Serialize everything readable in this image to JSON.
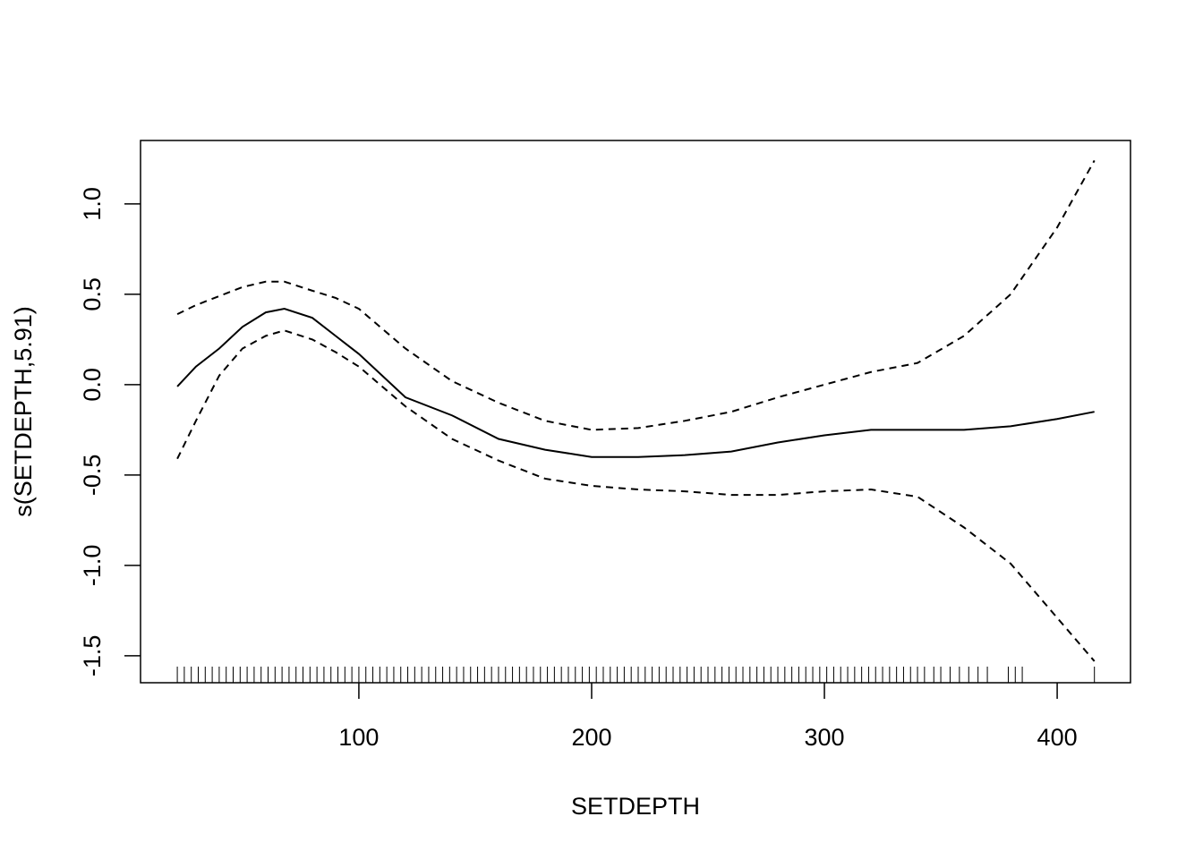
{
  "chart_data": {
    "type": "line",
    "x_label": "SETDEPTH",
    "y_label": "s(SETDEPTH,5.91)",
    "x": [
      22,
      30,
      40,
      50,
      60,
      68,
      80,
      90,
      100,
      120,
      140,
      160,
      180,
      200,
      220,
      240,
      260,
      280,
      300,
      320,
      340,
      360,
      380,
      400,
      416
    ],
    "series": [
      {
        "color": "#000000",
        "dashed": false,
        "values": [
          -0.01,
          0.1,
          0.2,
          0.32,
          0.4,
          0.42,
          0.37,
          0.27,
          0.17,
          -0.07,
          -0.17,
          -0.3,
          -0.36,
          -0.4,
          -0.4,
          -0.39,
          -0.37,
          -0.32,
          -0.28,
          -0.25,
          -0.25,
          -0.25,
          -0.23,
          -0.19,
          -0.15
        ]
      },
      {
        "color": "#000000",
        "dashed": true,
        "values": [
          0.39,
          0.44,
          0.49,
          0.54,
          0.57,
          0.57,
          0.52,
          0.48,
          0.42,
          0.2,
          0.02,
          -0.1,
          -0.2,
          -0.25,
          -0.24,
          -0.2,
          -0.15,
          -0.07,
          0.0,
          0.07,
          0.12,
          0.27,
          0.5,
          0.87,
          1.24
        ]
      },
      {
        "color": "#000000",
        "dashed": true,
        "values": [
          -0.41,
          -0.2,
          0.05,
          0.2,
          0.27,
          0.3,
          0.25,
          0.18,
          0.1,
          -0.12,
          -0.3,
          -0.42,
          -0.52,
          -0.56,
          -0.58,
          -0.59,
          -0.61,
          -0.61,
          -0.59,
          -0.58,
          -0.62,
          -0.79,
          -0.99,
          -1.29,
          -1.53
        ]
      }
    ],
    "rug": [
      22,
      25,
      28,
      31,
      34,
      37,
      40,
      43,
      46,
      49,
      52,
      55,
      58,
      61,
      64,
      67,
      70,
      73,
      76,
      79,
      82,
      85,
      88,
      91,
      94,
      97,
      100,
      103,
      106,
      109,
      112,
      115,
      118,
      121,
      124,
      127,
      130,
      133,
      136,
      139,
      142,
      145,
      148,
      151,
      154,
      157,
      160,
      163,
      166,
      169,
      172,
      175,
      178,
      181,
      184,
      187,
      190,
      193,
      196,
      199,
      202,
      205,
      208,
      211,
      214,
      217,
      220,
      223,
      226,
      229,
      232,
      235,
      238,
      241,
      244,
      247,
      250,
      253,
      256,
      259,
      262,
      265,
      268,
      271,
      274,
      277,
      280,
      283,
      286,
      289,
      292,
      295,
      298,
      301,
      304,
      307,
      310,
      313,
      316,
      319,
      322,
      325,
      328,
      331,
      334,
      337,
      340,
      343,
      347,
      350,
      354,
      358,
      362,
      366,
      370,
      379,
      382,
      385,
      416
    ],
    "xlim": [
      6.2,
      431.5
    ],
    "ylim": [
      -1.649,
      1.351
    ],
    "xticks": [
      100,
      200,
      300,
      400
    ],
    "yticks": [
      {
        "value": -1.5,
        "label": "-1.5"
      },
      {
        "value": -1.0,
        "label": "-1.0"
      },
      -0.5,
      {
        "value": 0.0,
        "label": "0.0"
      },
      0.5,
      {
        "value": 1.0,
        "label": "1.0"
      }
    ],
    "grid": false
  }
}
